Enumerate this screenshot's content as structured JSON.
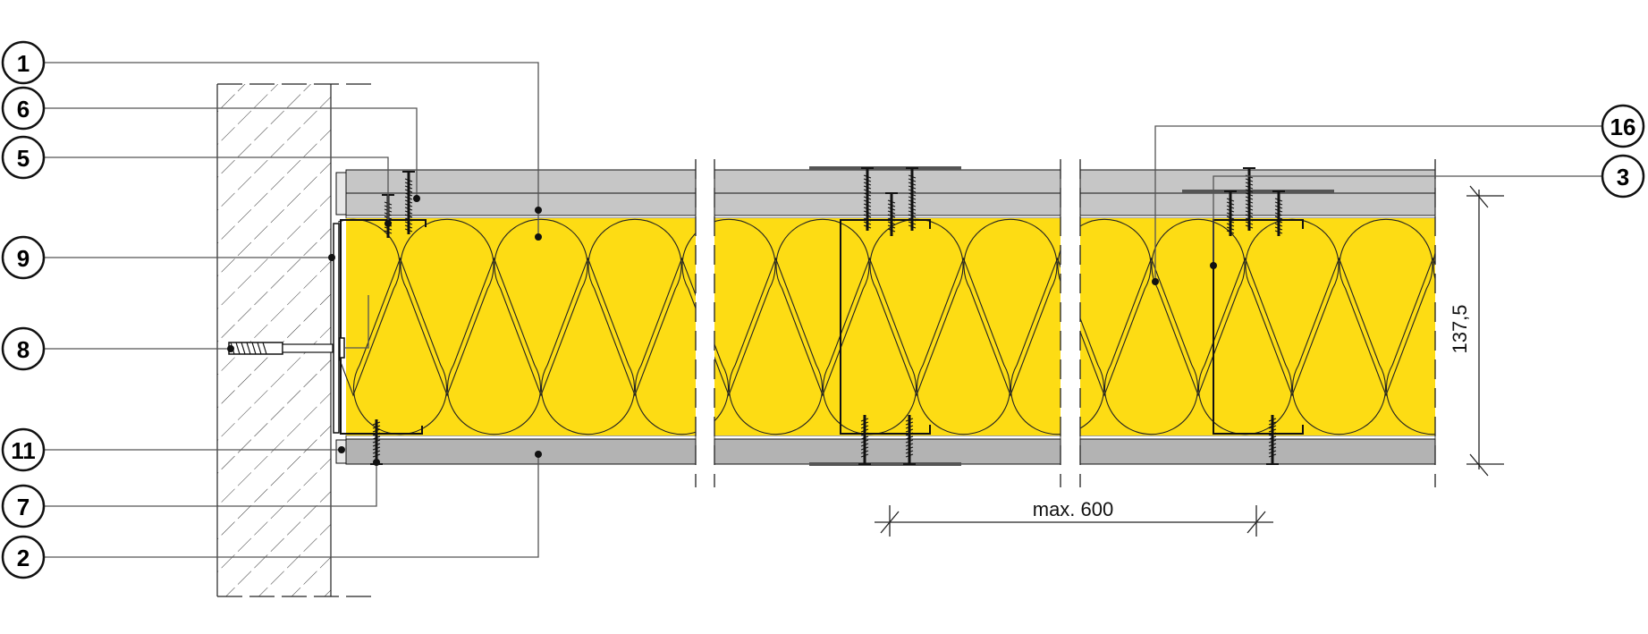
{
  "labels": {
    "left": [
      "1",
      "6",
      "5",
      "9",
      "8",
      "11",
      "7",
      "2"
    ],
    "right": [
      "16",
      "3"
    ]
  },
  "dimensions": {
    "thickness": "137,5",
    "stud_spacing": "max. 600"
  },
  "colors": {
    "insulation": "#fddc14",
    "board_top": "#c6c6c6",
    "board_bottom": "#b3b3b3",
    "line": "#111111",
    "leader": "#555555"
  }
}
